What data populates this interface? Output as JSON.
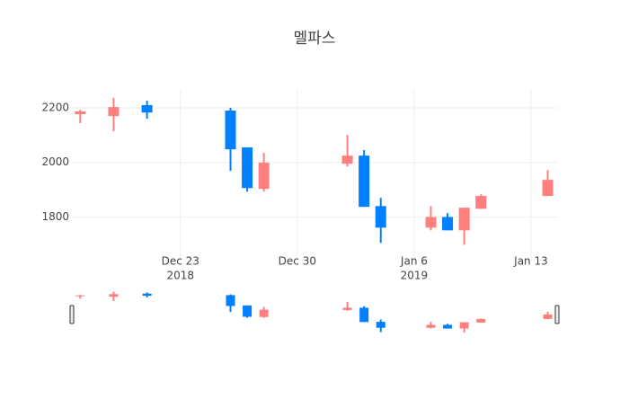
{
  "chart_data": {
    "type": "candlestick",
    "title": "멜파스",
    "x": [
      "2018-12-17",
      "2018-12-19",
      "2018-12-21",
      "2018-12-26",
      "2018-12-27",
      "2018-12-28",
      "2019-01-02",
      "2019-01-03",
      "2019-01-04",
      "2019-01-07",
      "2019-01-08",
      "2019-01-09",
      "2019-01-10",
      "2019-01-14"
    ],
    "open": [
      2177,
      2170,
      2210,
      2190,
      2055,
      1903,
      1995,
      2025,
      1840,
      1761,
      1800,
      1751,
      1830,
      1877
    ],
    "high": [
      2193,
      2236,
      2226,
      2200,
      2055,
      2035,
      2101,
      2045,
      1870,
      1840,
      1814,
      1834,
      1883,
      1972
    ],
    "low": [
      2144,
      2114,
      2160,
      1969,
      1893,
      1893,
      1985,
      1837,
      1705,
      1751,
      1751,
      1698,
      1830,
      1877
    ],
    "close": [
      2187,
      2203,
      2183,
      2048,
      1906,
      1999,
      2025,
      1837,
      1761,
      1800,
      1751,
      1834,
      1877,
      1936
    ],
    "increasing_color": "#ff7f7f",
    "decreasing_color": "#0080ff",
    "xlim": [
      "2018-12-16T12:00",
      "2019-01-14T13:30"
    ],
    "xticks": [
      {
        "value": "2018-12-23",
        "label": "Dec 23",
        "sublabel": "2018"
      },
      {
        "value": "2018-12-30",
        "label": "Dec 30"
      },
      {
        "value": "2019-01-06",
        "label": "Jan 6",
        "sublabel": "2019"
      },
      {
        "value": "2019-01-13",
        "label": "Jan 13"
      }
    ],
    "ylim": [
      1640,
      2266
    ],
    "yticks": [
      1800,
      2000,
      2200
    ],
    "grid": true,
    "rangeslider": true
  }
}
